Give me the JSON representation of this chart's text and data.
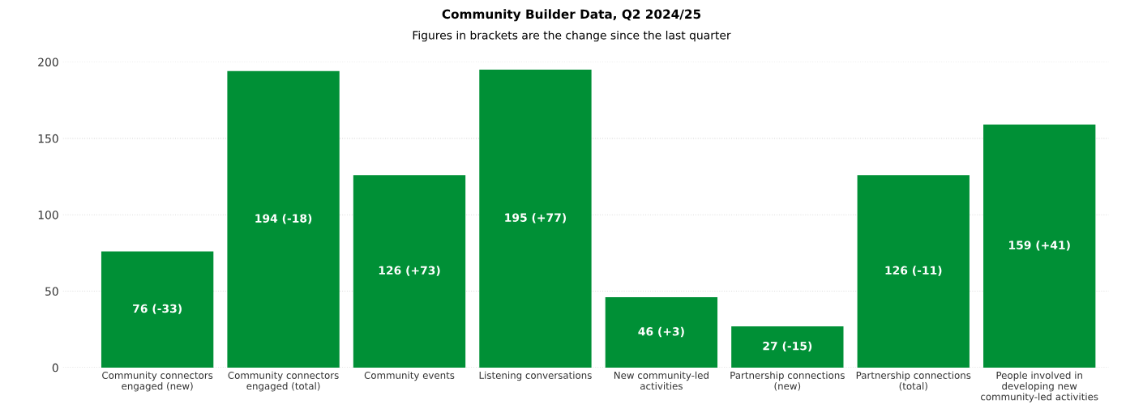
{
  "chart_data": {
    "type": "bar",
    "title": "Community Builder Data, Q2 2024/25",
    "subtitle": "Figures in brackets are the change since the last quarter",
    "categories": [
      "Community connectors engaged (new)",
      "Community connectors engaged (total)",
      "Community events",
      "Listening conversations",
      "New community-led activities",
      "Partnership connections (new)",
      "Partnership connections (total)",
      "People involved in developing new community-led activities"
    ],
    "values": [
      76,
      194,
      126,
      195,
      46,
      27,
      126,
      159
    ],
    "value_labels": [
      "76 (-33)",
      "194 (-18)",
      "126 (+73)",
      "195 (+77)",
      "46 (+3)",
      "27 (-15)",
      "126 (-11)",
      "159 (+41)"
    ],
    "color": "#009036",
    "ylim": [
      0,
      200
    ],
    "yticks": [
      0,
      50,
      100,
      150,
      200
    ],
    "grid": "y",
    "legend": false
  }
}
